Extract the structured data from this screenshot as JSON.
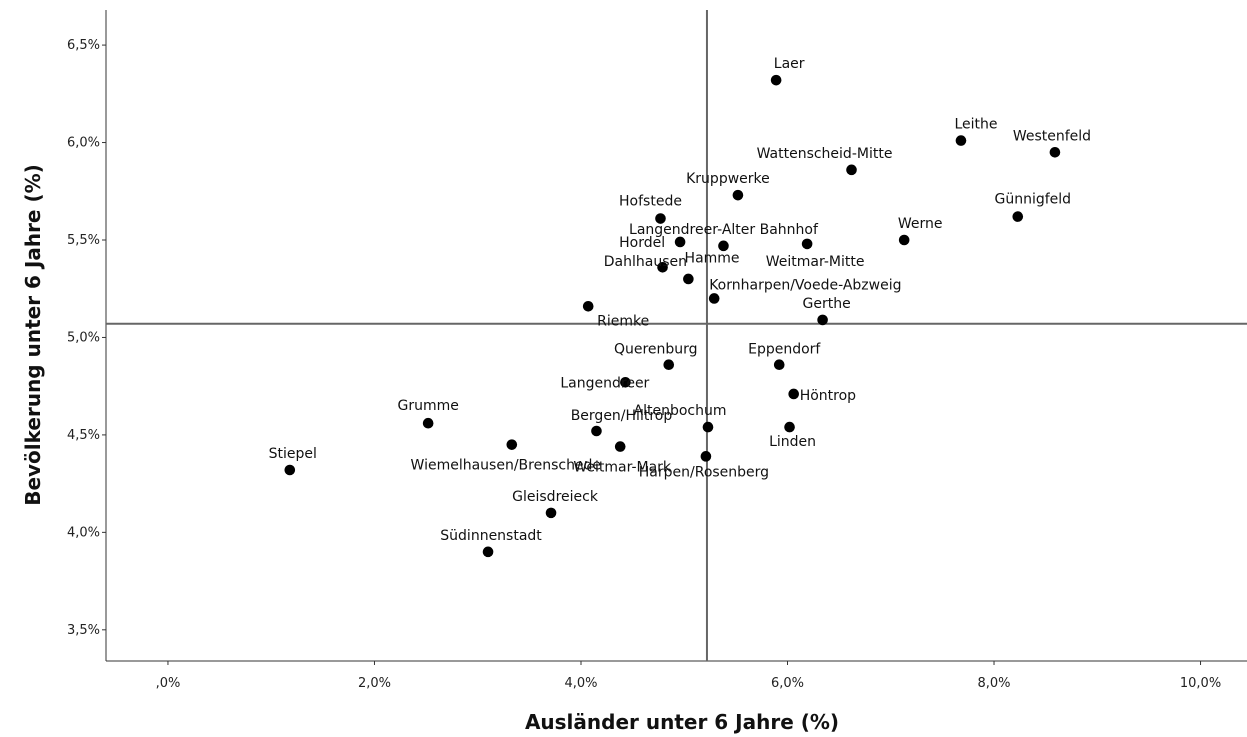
{
  "chart_data": {
    "type": "scatter",
    "xlabel": "Ausländer unter 6 Jahre (%)",
    "ylabel": "Bevölkerung unter 6 Jahre (%)",
    "xlim": [
      -0.6,
      10.45
    ],
    "ylim": [
      3.34,
      6.68
    ],
    "x_ticks": [
      0,
      2,
      4,
      6,
      8,
      10
    ],
    "x_tick_labels": [
      ",0%",
      "2,0%",
      "4,0%",
      "6,0%",
      "8,0%",
      "10,0%"
    ],
    "y_ticks": [
      3.5,
      4.0,
      4.5,
      5.0,
      5.5,
      6.0,
      6.5
    ],
    "y_tick_labels": [
      "3,5%",
      "4,0%",
      "4,5%",
      "5,0%",
      "5,5%",
      "6,0%",
      "6,5%"
    ],
    "reference_lines": {
      "x": 5.22,
      "y": 5.07
    },
    "grid": false,
    "points": [
      {
        "label": "Laer",
        "x": 5.89,
        "y": 6.32
      },
      {
        "label": "Leithe",
        "x": 7.68,
        "y": 6.01
      },
      {
        "label": "Westenfeld",
        "x": 8.59,
        "y": 5.95
      },
      {
        "label": "Wattenscheid-Mitte",
        "x": 6.62,
        "y": 5.86
      },
      {
        "label": "Kruppwerke",
        "x": 5.52,
        "y": 5.73
      },
      {
        "label": "Günnigfeld",
        "x": 8.23,
        "y": 5.62
      },
      {
        "label": "Hofstede",
        "x": 4.77,
        "y": 5.61
      },
      {
        "label": "Werne",
        "x": 7.13,
        "y": 5.5
      },
      {
        "label": "Hordel",
        "x": 4.96,
        "y": 5.49
      },
      {
        "label": "Langendreer-Alter Bahnhof",
        "x": 5.38,
        "y": 5.47
      },
      {
        "label": "Weitmar-Mitte",
        "x": 6.19,
        "y": 5.48
      },
      {
        "label": "Hamme",
        "x": 4.79,
        "y": 5.36
      },
      {
        "label": "Dahlhausen",
        "x": 5.04,
        "y": 5.3
      },
      {
        "label": "Kornharpen/Voede-Abzweig",
        "x": 5.29,
        "y": 5.2
      },
      {
        "label": "Riemke",
        "x": 4.07,
        "y": 5.16
      },
      {
        "label": "Gerthe",
        "x": 6.34,
        "y": 5.09
      },
      {
        "label": "Querenburg",
        "x": 4.85,
        "y": 4.86
      },
      {
        "label": "Eppendorf",
        "x": 5.92,
        "y": 4.86
      },
      {
        "label": "Langendreer",
        "x": 4.43,
        "y": 4.77
      },
      {
        "label": "Höntrop",
        "x": 6.06,
        "y": 4.71
      },
      {
        "label": "Grumme",
        "x": 2.52,
        "y": 4.56
      },
      {
        "label": "Bergen/Hiltrop",
        "x": 4.15,
        "y": 4.52
      },
      {
        "label": "Altenbochum",
        "x": 5.23,
        "y": 4.54
      },
      {
        "label": "Linden",
        "x": 6.02,
        "y": 4.54
      },
      {
        "label": "Wiemelhausen/Brenschede",
        "x": 3.33,
        "y": 4.45
      },
      {
        "label": "Weitmar-Mark",
        "x": 4.38,
        "y": 4.44
      },
      {
        "label": "Harpen/Rosenberg",
        "x": 5.21,
        "y": 4.39
      },
      {
        "label": "Stiepel",
        "x": 1.18,
        "y": 4.32
      },
      {
        "label": "Gleisdreieck",
        "x": 3.71,
        "y": 4.1
      },
      {
        "label": "Südinnenstadt",
        "x": 3.1,
        "y": 3.9
      }
    ]
  }
}
